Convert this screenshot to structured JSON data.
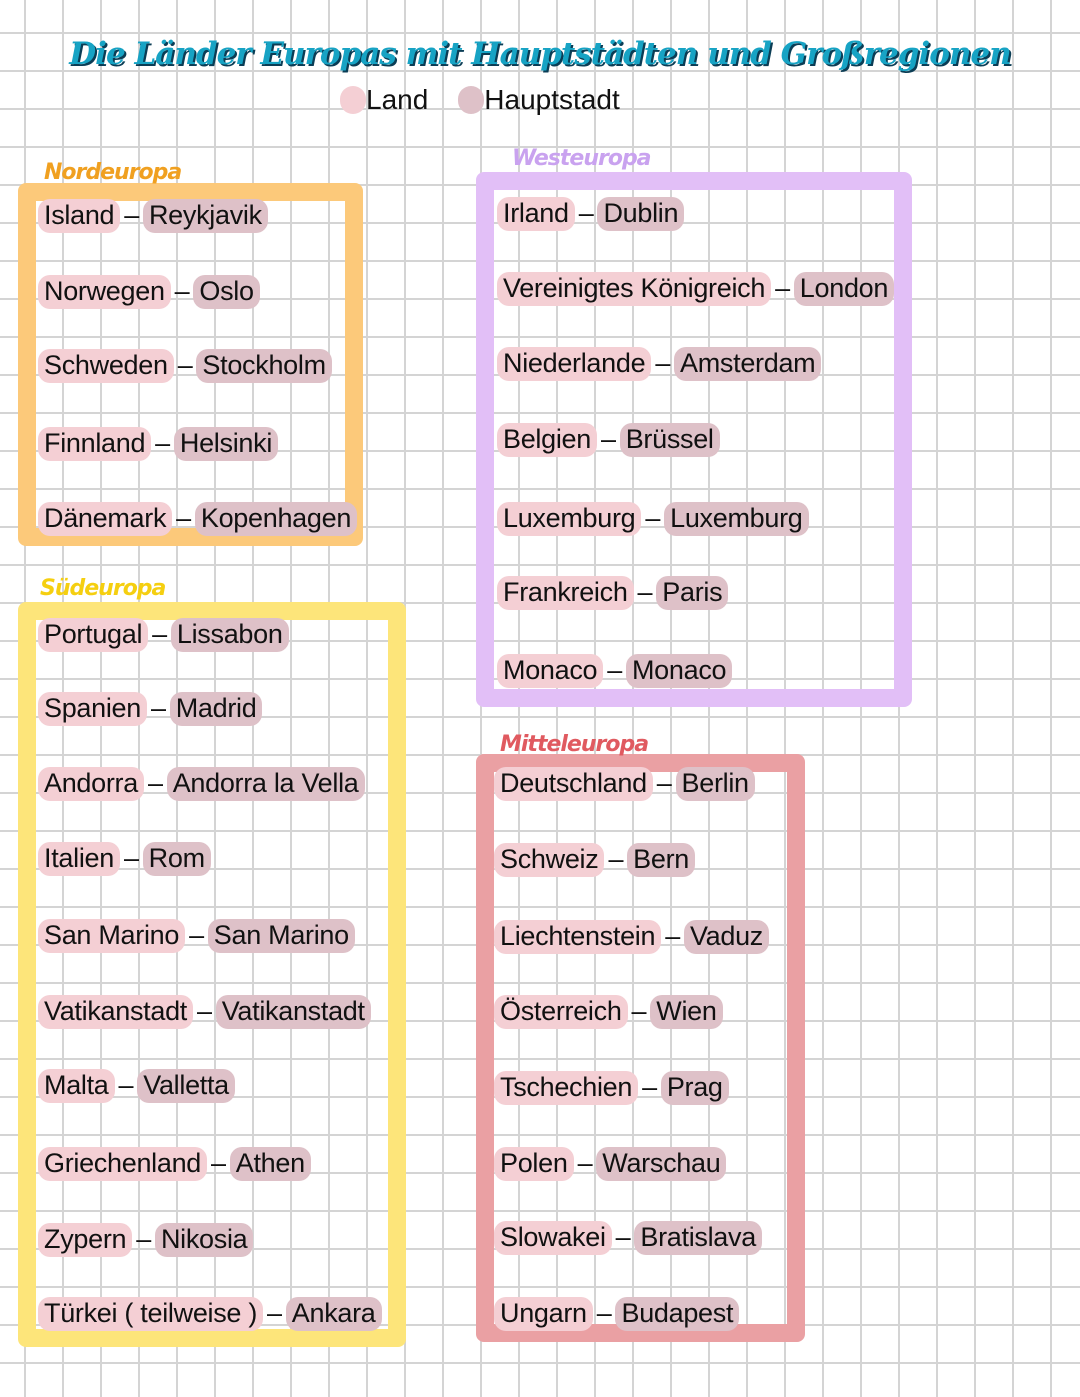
{
  "title": "Die Länder Europas mit Hauptstädten und Großregionen",
  "legend": {
    "land": "Land",
    "capital": "Hauptstadt"
  },
  "colors": {
    "land": "#f4cfd4",
    "capital": "#dec1c8",
    "title": "#17a3c4",
    "nordeuropa": "#fcc97a",
    "westeuropa": "#e2bff7",
    "suedeuropa": "#fde57a",
    "mitteleuropa": "#eaa0a3"
  },
  "regions": [
    {
      "name": "Nordeuropa",
      "entries": [
        [
          "Island",
          "Reykjavik"
        ],
        [
          "Norwegen",
          "Oslo"
        ],
        [
          "Schweden",
          "Stockholm"
        ],
        [
          "Finnland",
          "Helsinki"
        ],
        [
          "Dänemark",
          "Kopenhagen"
        ]
      ]
    },
    {
      "name": "Westeuropa",
      "entries": [
        [
          "Irland",
          "Dublin"
        ],
        [
          "Vereinigtes Königreich",
          "London"
        ],
        [
          "Niederlande",
          "Amsterdam"
        ],
        [
          "Belgien",
          "Brüssel"
        ],
        [
          "Luxemburg",
          "Luxemburg"
        ],
        [
          "Frankreich",
          "Paris"
        ],
        [
          "Monaco",
          "Monaco"
        ]
      ]
    },
    {
      "name": "Südeuropa",
      "entries": [
        [
          "Portugal",
          "Lissabon"
        ],
        [
          "Spanien",
          "Madrid"
        ],
        [
          "Andorra",
          "Andorra la Vella"
        ],
        [
          "Italien",
          "Rom"
        ],
        [
          "San Marino",
          "San Marino"
        ],
        [
          "Vatikanstadt",
          "Vatikanstadt"
        ],
        [
          "Malta",
          "Valletta"
        ],
        [
          "Griechenland",
          "Athen"
        ],
        [
          "Zypern",
          "Nikosia"
        ],
        [
          "Türkei ( teilweise )",
          "Ankara"
        ]
      ]
    },
    {
      "name": "Mitteleuropa",
      "entries": [
        [
          "Deutschland",
          "Berlin"
        ],
        [
          "Schweiz",
          "Bern"
        ],
        [
          "Liechtenstein",
          "Vaduz"
        ],
        [
          "Österreich",
          "Wien"
        ],
        [
          "Tschechien",
          "Prag"
        ],
        [
          "Polen",
          "Warschau"
        ],
        [
          "Slowakei",
          "Bratislava"
        ],
        [
          "Ungarn",
          "Budapest"
        ]
      ]
    }
  ],
  "separator": "–"
}
